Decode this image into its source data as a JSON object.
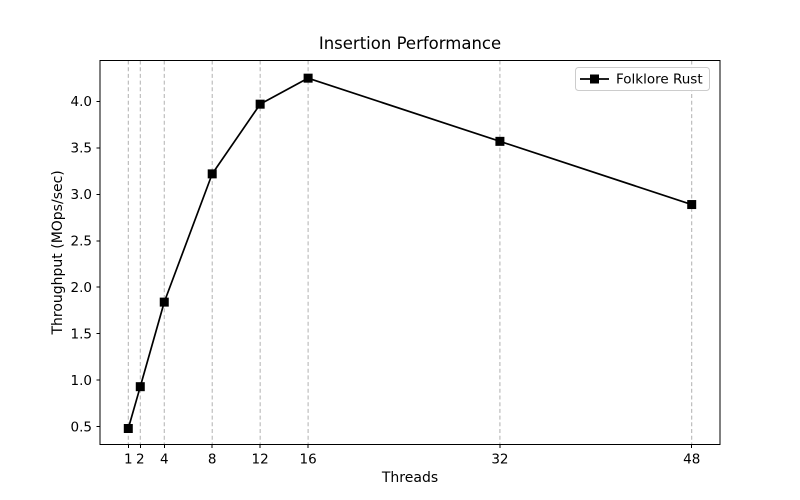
{
  "figure": {
    "title": "Insertion Performance",
    "xlabel": "Threads",
    "ylabel": "Throughput (MOps/sec)",
    "legend_label": "Folklore Rust"
  },
  "chart_data": {
    "type": "line",
    "title": "Insertion Performance",
    "xlabel": "Threads",
    "ylabel": "Throughput (MOps/sec)",
    "x": [
      1,
      2,
      4,
      8,
      12,
      16,
      32,
      48
    ],
    "series": [
      {
        "name": "Folklore Rust",
        "values": [
          0.48,
          0.93,
          1.84,
          3.22,
          3.97,
          4.25,
          3.57,
          2.89
        ],
        "color": "#000000",
        "marker": "square",
        "linewidth": 1.7,
        "markersize": 9
      }
    ],
    "xticks": [
      1,
      2,
      4,
      8,
      12,
      16,
      32,
      48
    ],
    "yticks": [
      0.5,
      1.0,
      1.5,
      2.0,
      2.5,
      3.0,
      3.5,
      4.0
    ],
    "xlim": [
      -1.36,
      50.36
    ],
    "ylim": [
      0.31,
      4.44
    ],
    "grid": {
      "axis": "x",
      "linestyle": "dashed",
      "color": "#b0b0b0"
    },
    "legend_position": "upper right",
    "colors": {
      "background": "#ffffff",
      "line": "#000000",
      "grid": "#b0b0b0",
      "spine": "#000000",
      "text": "#000000",
      "legend_border": "#cccccc",
      "legend_background": "#ffffff"
    }
  }
}
